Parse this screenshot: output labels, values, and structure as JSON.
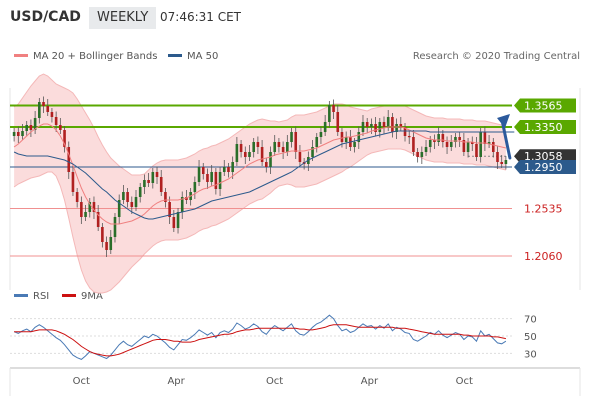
{
  "header": {
    "symbol": "USD/CAD",
    "timeframe": "WEEKLY",
    "time": "07:46:31 CET"
  },
  "legend": {
    "items": [
      {
        "label": "MA 20 + Bollinger Bands",
        "color": "#f08080"
      },
      {
        "label": "MA 50",
        "color": "#2c5a8c"
      }
    ],
    "credit": "Research © 2020 Trading Central"
  },
  "rsi_legend": {
    "items": [
      {
        "label": "RSI",
        "color": "#4a7ab5"
      },
      {
        "label": "9MA",
        "color": "#cc1111"
      }
    ]
  },
  "colors": {
    "resistance": "#5aa800",
    "support_blue": "#2c5a8c",
    "support_red": "#e05050",
    "current": "#333333",
    "band_fill": "#fbdcdc",
    "candle_up": "#2a6e2a",
    "candle_down": "#b02020",
    "arrow": "#2c5a9c"
  },
  "chart_data": [
    {
      "type": "candlestick",
      "x_ticks": [
        "Oct",
        "Apr",
        "Oct",
        "Apr",
        "Oct"
      ],
      "ylim": [
        1.18,
        1.39
      ],
      "levels": [
        {
          "value": 1.3565,
          "label": "1.3565",
          "kind": "resistance"
        },
        {
          "value": 1.335,
          "label": "1.3350",
          "kind": "resistance"
        },
        {
          "value": 1.3058,
          "label": "1.3058",
          "kind": "current"
        },
        {
          "value": 1.295,
          "label": "1.2950",
          "kind": "support_blue"
        },
        {
          "value": 1.2535,
          "label": "1.2535",
          "kind": "support_red"
        },
        {
          "value": 1.206,
          "label": "1.2060",
          "kind": "support_red"
        }
      ],
      "close": [
        1.33,
        1.326,
        1.331,
        1.337,
        1.332,
        1.344,
        1.36,
        1.356,
        1.35,
        1.345,
        1.337,
        1.332,
        1.315,
        1.29,
        1.27,
        1.26,
        1.245,
        1.25,
        1.26,
        1.25,
        1.235,
        1.22,
        1.212,
        1.225,
        1.245,
        1.262,
        1.27,
        1.26,
        1.255,
        1.265,
        1.275,
        1.282,
        1.279,
        1.29,
        1.285,
        1.27,
        1.26,
        1.245,
        1.234,
        1.25,
        1.265,
        1.262,
        1.27,
        1.28,
        1.295,
        1.288,
        1.28,
        1.29,
        1.273,
        1.29,
        1.295,
        1.29,
        1.3,
        1.318,
        1.31,
        1.305,
        1.31,
        1.32,
        1.315,
        1.3,
        1.295,
        1.31,
        1.32,
        1.315,
        1.31,
        1.32,
        1.33,
        1.31,
        1.3,
        1.298,
        1.305,
        1.315,
        1.325,
        1.33,
        1.34,
        1.357,
        1.35,
        1.33,
        1.32,
        1.325,
        1.315,
        1.32,
        1.33,
        1.34,
        1.335,
        1.338,
        1.33,
        1.34,
        1.335,
        1.345,
        1.33,
        1.338,
        1.335,
        1.326,
        1.325,
        1.31,
        1.305,
        1.31,
        1.315,
        1.322,
        1.32,
        1.328,
        1.32,
        1.315,
        1.32,
        1.325,
        1.322,
        1.31,
        1.32,
        1.318,
        1.305,
        1.33,
        1.318,
        1.32,
        1.31,
        1.3,
        1.298,
        1.302
      ],
      "ma20": [
        1.315,
        1.318,
        1.322,
        1.326,
        1.33,
        1.333,
        1.336,
        1.338,
        1.338,
        1.336,
        1.332,
        1.326,
        1.318,
        1.308,
        1.297,
        1.285,
        1.274,
        1.265,
        1.258,
        1.252,
        1.247,
        1.243,
        1.24,
        1.238,
        1.238,
        1.238,
        1.239,
        1.24,
        1.241,
        1.243,
        1.245,
        1.248,
        1.252,
        1.256,
        1.259,
        1.261,
        1.262,
        1.262,
        1.262,
        1.262,
        1.263,
        1.264,
        1.266,
        1.268,
        1.271,
        1.273,
        1.274,
        1.276,
        1.277,
        1.279,
        1.281,
        1.283,
        1.286,
        1.289,
        1.292,
        1.295,
        1.298,
        1.3,
        1.302,
        1.303,
        1.304,
        1.305,
        1.307,
        1.308,
        1.309,
        1.31,
        1.311,
        1.311,
        1.311,
        1.311,
        1.312,
        1.313,
        1.314,
        1.316,
        1.318,
        1.32,
        1.322,
        1.323,
        1.324,
        1.325,
        1.325,
        1.326,
        1.327,
        1.328,
        1.329,
        1.331,
        1.332,
        1.333,
        1.334,
        1.335,
        1.335,
        1.335,
        1.335,
        1.334,
        1.332,
        1.33,
        1.328,
        1.326,
        1.324,
        1.323,
        1.322,
        1.322,
        1.322,
        1.321,
        1.321,
        1.321,
        1.321,
        1.32,
        1.32,
        1.32,
        1.319,
        1.319,
        1.319,
        1.318,
        1.317,
        1.316,
        1.315,
        1.314
      ],
      "bb_width": [
        0.04,
        0.04,
        0.042,
        0.044,
        0.046,
        0.048,
        0.05,
        0.05,
        0.048,
        0.046,
        0.046,
        0.05,
        0.056,
        0.064,
        0.072,
        0.078,
        0.082,
        0.084,
        0.084,
        0.082,
        0.078,
        0.074,
        0.07,
        0.066,
        0.062,
        0.058,
        0.054,
        0.05,
        0.046,
        0.044,
        0.042,
        0.04,
        0.04,
        0.04,
        0.04,
        0.04,
        0.04,
        0.04,
        0.04,
        0.04,
        0.04,
        0.04,
        0.04,
        0.04,
        0.04,
        0.04,
        0.04,
        0.04,
        0.04,
        0.04,
        0.04,
        0.04,
        0.04,
        0.04,
        0.04,
        0.04,
        0.04,
        0.04,
        0.04,
        0.04,
        0.038,
        0.036,
        0.034,
        0.032,
        0.032,
        0.032,
        0.034,
        0.036,
        0.036,
        0.036,
        0.036,
        0.036,
        0.036,
        0.036,
        0.036,
        0.036,
        0.036,
        0.035,
        0.034,
        0.032,
        0.03,
        0.028,
        0.026,
        0.024,
        0.022,
        0.022,
        0.022,
        0.022,
        0.022,
        0.022,
        0.022,
        0.022,
        0.022,
        0.022,
        0.022,
        0.022,
        0.022,
        0.022,
        0.022,
        0.022,
        0.022,
        0.022,
        0.022,
        0.022,
        0.022,
        0.022,
        0.022,
        0.022,
        0.022,
        0.022,
        0.022,
        0.022,
        0.022,
        0.022,
        0.022,
        0.022,
        0.022,
        0.022
      ],
      "ma50": [
        1.31,
        1.308,
        1.307,
        1.306,
        1.306,
        1.306,
        1.306,
        1.306,
        1.306,
        1.305,
        1.304,
        1.303,
        1.302,
        1.3,
        1.298,
        1.295,
        1.292,
        1.289,
        1.285,
        1.281,
        1.277,
        1.273,
        1.27,
        1.266,
        1.262,
        1.259,
        1.256,
        1.253,
        1.25,
        1.248,
        1.246,
        1.244,
        1.243,
        1.243,
        1.244,
        1.245,
        1.246,
        1.247,
        1.248,
        1.249,
        1.25,
        1.251,
        1.252,
        1.253,
        1.255,
        1.257,
        1.259,
        1.261,
        1.262,
        1.263,
        1.264,
        1.265,
        1.266,
        1.267,
        1.268,
        1.269,
        1.27,
        1.272,
        1.274,
        1.276,
        1.278,
        1.28,
        1.282,
        1.284,
        1.286,
        1.288,
        1.29,
        1.293,
        1.296,
        1.299,
        1.302,
        1.304,
        1.306,
        1.308,
        1.31,
        1.312,
        1.314,
        1.316,
        1.318,
        1.319,
        1.32,
        1.321,
        1.322,
        1.323,
        1.324,
        1.325,
        1.326,
        1.327,
        1.328,
        1.329,
        1.33,
        1.331,
        1.331,
        1.331,
        1.331,
        1.331,
        1.331,
        1.331,
        1.331,
        1.33,
        1.33,
        1.33,
        1.33,
        1.33,
        1.33,
        1.33,
        1.33,
        1.33,
        1.33,
        1.33,
        1.33,
        1.33,
        1.33,
        1.33,
        1.33,
        1.33,
        1.33,
        1.33,
        1.33,
        1.33
      ]
    },
    {
      "type": "line",
      "y_ticks": [
        70,
        50,
        30
      ],
      "ylim": [
        20,
        80
      ],
      "rsi": [
        55,
        53,
        56,
        58,
        55,
        60,
        63,
        60,
        56,
        52,
        48,
        45,
        40,
        34,
        28,
        25,
        23,
        27,
        32,
        30,
        28,
        26,
        24,
        28,
        34,
        40,
        44,
        40,
        38,
        42,
        46,
        50,
        48,
        52,
        50,
        46,
        42,
        37,
        34,
        40,
        46,
        45,
        48,
        52,
        57,
        54,
        51,
        54,
        48,
        54,
        56,
        54,
        58,
        65,
        62,
        58,
        60,
        64,
        61,
        55,
        52,
        58,
        62,
        59,
        56,
        60,
        64,
        56,
        52,
        51,
        55,
        60,
        64,
        66,
        70,
        74,
        70,
        62,
        56,
        58,
        54,
        56,
        60,
        64,
        61,
        62,
        58,
        62,
        59,
        64,
        56,
        60,
        58,
        54,
        53,
        46,
        44,
        47,
        50,
        54,
        52,
        56,
        51,
        48,
        51,
        54,
        52,
        46,
        50,
        49,
        44,
        56,
        50,
        52,
        47,
        42,
        41,
        44
      ],
      "rsi_ma": [
        55,
        55,
        55,
        55,
        55,
        56,
        57,
        57,
        57,
        57,
        56,
        54,
        52,
        49,
        46,
        42,
        38,
        35,
        32,
        30,
        29,
        28,
        27,
        27,
        28,
        29,
        31,
        33,
        35,
        37,
        39,
        41,
        43,
        45,
        46,
        46,
        46,
        45,
        44,
        44,
        43,
        43,
        43,
        44,
        46,
        47,
        48,
        49,
        50,
        51,
        52,
        52,
        53,
        55,
        56,
        57,
        57,
        58,
        59,
        59,
        59,
        59,
        59,
        59,
        59,
        59,
        59,
        59,
        58,
        58,
        57,
        57,
        58,
        59,
        60,
        62,
        63,
        63,
        63,
        63,
        62,
        61,
        60,
        60,
        60,
        60,
        60,
        60,
        60,
        60,
        60,
        59,
        59,
        59,
        58,
        57,
        56,
        55,
        54,
        53,
        52,
        52,
        52,
        52,
        52,
        52,
        52,
        51,
        51,
        50,
        50,
        50,
        50,
        50,
        49,
        49,
        48,
        47
      ]
    }
  ]
}
